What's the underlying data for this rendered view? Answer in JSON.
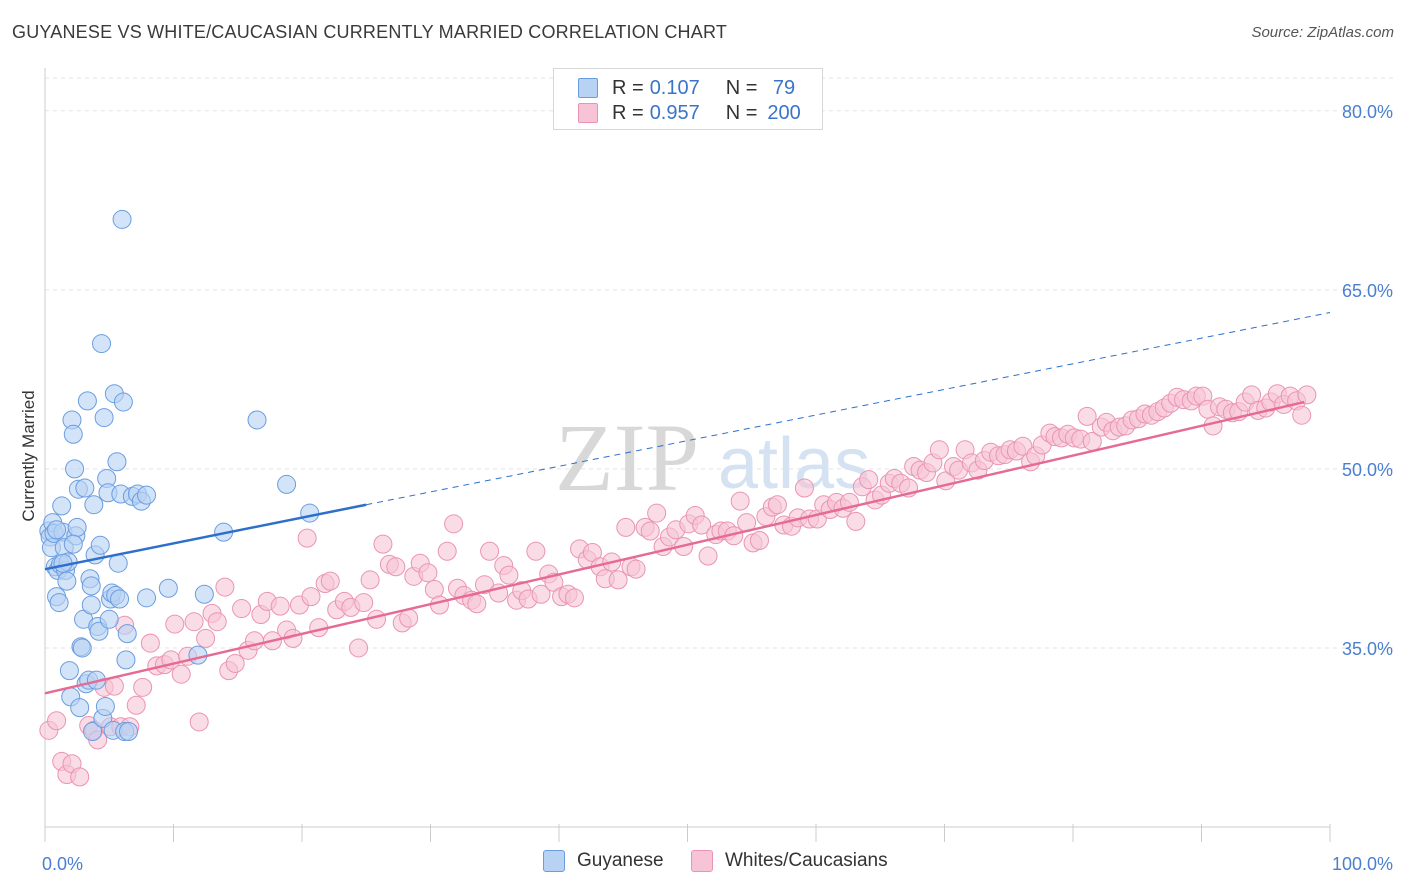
{
  "title": "GUYANESE VS WHITE/CAUCASIAN CURRENTLY MARRIED CORRELATION CHART",
  "source": "Source: ZipAtlas.com",
  "watermark": {
    "zip": "ZIP",
    "atlas": "atlas"
  },
  "colors": {
    "blue_fill": "#b7d2f3",
    "blue_stroke": "#6a9de0",
    "blue_line": "#2e6fcb",
    "pink_fill": "#f6c4d6",
    "pink_stroke": "#ea94b4",
    "pink_line": "#e66b94",
    "grid": "#e4e4e4",
    "axis_text": "#4a7fd0"
  },
  "legend": {
    "rows": [
      {
        "r_label": "R = ",
        "r_value": "0.107",
        "n_label": "N = ",
        "n_value": " 79"
      },
      {
        "r_label": "R = ",
        "r_value": "0.957",
        "n_label": "N = ",
        "n_value": "200"
      }
    ]
  },
  "bottom_legend": [
    "Guyanese",
    "Whites/Caucasians"
  ],
  "chart_data": {
    "type": "scatter",
    "title": "GUYANESE VS WHITE/CAUCASIAN CURRENTLY MARRIED CORRELATION CHART",
    "xlabel": "",
    "ylabel": "Currently Married",
    "xlim": [
      0,
      100
    ],
    "ylim": [
      20,
      83
    ],
    "x_tick_labels": [
      {
        "x": 0,
        "label": "0.0%"
      },
      {
        "x": 100,
        "label": "100.0%"
      }
    ],
    "y_tick_labels": [
      {
        "y": 35,
        "label": "35.0%"
      },
      {
        "y": 50,
        "label": "50.0%"
      },
      {
        "y": 65,
        "label": "65.0%"
      },
      {
        "y": 80,
        "label": "80.0%"
      }
    ],
    "grid": true,
    "series": [
      {
        "name": "Guyanese",
        "r": 0.107,
        "n": 79,
        "trend": {
          "x0": 0,
          "y0": 41.6,
          "x1": 25,
          "y1": 47.0,
          "dashed_to_x": 100,
          "dashed_to_y": 63.1
        },
        "points": [
          [
            0.3,
            44.8
          ],
          [
            0.4,
            44.3
          ],
          [
            0.5,
            43.4
          ],
          [
            0.6,
            45.5
          ],
          [
            0.7,
            44.6
          ],
          [
            0.8,
            41.8
          ],
          [
            0.9,
            39.3
          ],
          [
            1.0,
            41.5
          ],
          [
            1.1,
            38.8
          ],
          [
            1.2,
            42.0
          ],
          [
            1.3,
            46.9
          ],
          [
            1.4,
            44.7
          ],
          [
            1.5,
            43.4
          ],
          [
            1.6,
            41.5
          ],
          [
            1.7,
            40.6
          ],
          [
            1.8,
            42.2
          ],
          [
            1.9,
            33.1
          ],
          [
            2.0,
            30.9
          ],
          [
            2.1,
            54.1
          ],
          [
            2.2,
            52.9
          ],
          [
            2.3,
            50.0
          ],
          [
            2.4,
            44.4
          ],
          [
            2.5,
            45.1
          ],
          [
            2.6,
            48.3
          ],
          [
            2.7,
            30.0
          ],
          [
            2.8,
            35.1
          ],
          [
            2.9,
            35.0
          ],
          [
            3.0,
            37.4
          ],
          [
            3.1,
            48.4
          ],
          [
            3.2,
            32.0
          ],
          [
            3.3,
            55.7
          ],
          [
            3.4,
            32.3
          ],
          [
            3.5,
            40.8
          ],
          [
            3.6,
            40.2
          ],
          [
            3.7,
            28.0
          ],
          [
            3.8,
            47.0
          ],
          [
            3.9,
            42.8
          ],
          [
            4.0,
            32.3
          ],
          [
            4.1,
            36.8
          ],
          [
            4.2,
            36.4
          ],
          [
            4.3,
            43.6
          ],
          [
            4.4,
            60.5
          ],
          [
            4.5,
            29.1
          ],
          [
            4.6,
            54.3
          ],
          [
            4.7,
            30.1
          ],
          [
            4.8,
            49.2
          ],
          [
            4.9,
            48.0
          ],
          [
            5.0,
            37.4
          ],
          [
            5.1,
            39.1
          ],
          [
            5.2,
            39.6
          ],
          [
            5.3,
            28.1
          ],
          [
            5.4,
            56.3
          ],
          [
            5.5,
            39.4
          ],
          [
            5.6,
            50.6
          ],
          [
            5.7,
            42.1
          ],
          [
            5.8,
            39.1
          ],
          [
            5.9,
            47.9
          ],
          [
            6.0,
            70.9
          ],
          [
            6.1,
            55.6
          ],
          [
            6.2,
            28.0
          ],
          [
            6.3,
            34.0
          ],
          [
            6.4,
            36.2
          ],
          [
            6.5,
            28.0
          ],
          [
            6.8,
            47.7
          ],
          [
            7.2,
            47.9
          ],
          [
            7.5,
            47.3
          ],
          [
            7.9,
            47.8
          ],
          [
            7.9,
            39.2
          ],
          [
            9.6,
            40.0
          ],
          [
            11.9,
            34.4
          ],
          [
            12.4,
            39.5
          ],
          [
            13.9,
            44.7
          ],
          [
            16.5,
            54.1
          ],
          [
            18.8,
            48.7
          ],
          [
            20.6,
            46.3
          ],
          [
            2.2,
            43.7
          ],
          [
            1.4,
            42.1
          ],
          [
            0.9,
            44.9
          ],
          [
            3.6,
            38.6
          ]
        ]
      },
      {
        "name": "Whites/Caucasians",
        "r": 0.957,
        "n": 200,
        "trend": {
          "x0": 0,
          "y0": 31.2,
          "x1": 98,
          "y1": 55.6
        },
        "points": [
          [
            0.3,
            28.1
          ],
          [
            0.9,
            28.9
          ],
          [
            1.3,
            25.5
          ],
          [
            1.7,
            24.4
          ],
          [
            2.1,
            25.3
          ],
          [
            2.7,
            24.2
          ],
          [
            3.4,
            28.5
          ],
          [
            3.8,
            28.1
          ],
          [
            4.1,
            27.3
          ],
          [
            4.6,
            31.7
          ],
          [
            5.1,
            28.4
          ],
          [
            5.4,
            31.8
          ],
          [
            5.9,
            28.4
          ],
          [
            6.2,
            36.9
          ],
          [
            6.6,
            28.4
          ],
          [
            7.1,
            30.2
          ],
          [
            7.6,
            31.7
          ],
          [
            8.2,
            35.4
          ],
          [
            8.7,
            33.5
          ],
          [
            9.3,
            33.6
          ],
          [
            9.8,
            34.0
          ],
          [
            10.1,
            37.0
          ],
          [
            10.6,
            32.8
          ],
          [
            11.1,
            34.3
          ],
          [
            11.6,
            37.2
          ],
          [
            12.0,
            28.8
          ],
          [
            12.5,
            35.8
          ],
          [
            13.0,
            37.9
          ],
          [
            13.4,
            37.2
          ],
          [
            14.0,
            40.1
          ],
          [
            14.3,
            33.1
          ],
          [
            14.8,
            33.7
          ],
          [
            15.3,
            38.3
          ],
          [
            15.8,
            34.8
          ],
          [
            16.3,
            35.6
          ],
          [
            16.8,
            37.8
          ],
          [
            17.3,
            38.9
          ],
          [
            17.7,
            35.6
          ],
          [
            18.3,
            38.5
          ],
          [
            18.8,
            36.5
          ],
          [
            19.3,
            35.8
          ],
          [
            19.8,
            38.6
          ],
          [
            20.4,
            44.2
          ],
          [
            20.7,
            39.3
          ],
          [
            21.3,
            36.7
          ],
          [
            21.8,
            40.4
          ],
          [
            22.2,
            40.6
          ],
          [
            22.7,
            38.2
          ],
          [
            23.3,
            38.9
          ],
          [
            23.8,
            38.4
          ],
          [
            24.4,
            35.0
          ],
          [
            24.8,
            38.8
          ],
          [
            25.3,
            40.7
          ],
          [
            25.8,
            37.4
          ],
          [
            26.3,
            43.7
          ],
          [
            26.8,
            42.0
          ],
          [
            27.3,
            41.8
          ],
          [
            27.8,
            37.1
          ],
          [
            28.3,
            37.5
          ],
          [
            28.7,
            41.0
          ],
          [
            29.2,
            42.1
          ],
          [
            29.8,
            41.3
          ],
          [
            30.3,
            39.9
          ],
          [
            30.7,
            38.6
          ],
          [
            31.3,
            43.1
          ],
          [
            31.8,
            45.4
          ],
          [
            32.1,
            40.0
          ],
          [
            32.6,
            39.4
          ],
          [
            33.2,
            39.0
          ],
          [
            33.6,
            38.7
          ],
          [
            34.2,
            40.3
          ],
          [
            34.6,
            43.1
          ],
          [
            35.3,
            39.6
          ],
          [
            35.7,
            41.9
          ],
          [
            36.1,
            41.1
          ],
          [
            36.7,
            39.0
          ],
          [
            37.1,
            39.8
          ],
          [
            37.6,
            39.1
          ],
          [
            38.2,
            43.1
          ],
          [
            38.6,
            39.5
          ],
          [
            39.2,
            41.2
          ],
          [
            39.6,
            40.5
          ],
          [
            40.2,
            39.3
          ],
          [
            40.7,
            39.5
          ],
          [
            41.2,
            39.2
          ],
          [
            41.6,
            43.3
          ],
          [
            42.2,
            42.4
          ],
          [
            42.6,
            43.0
          ],
          [
            43.2,
            41.8
          ],
          [
            43.6,
            40.8
          ],
          [
            44.1,
            42.2
          ],
          [
            44.6,
            40.7
          ],
          [
            45.2,
            45.1
          ],
          [
            45.6,
            41.8
          ],
          [
            46.0,
            41.6
          ],
          [
            46.7,
            45.1
          ],
          [
            47.1,
            44.8
          ],
          [
            47.6,
            46.3
          ],
          [
            48.1,
            43.5
          ],
          [
            48.6,
            44.3
          ],
          [
            49.1,
            44.9
          ],
          [
            49.7,
            43.5
          ],
          [
            50.1,
            45.4
          ],
          [
            50.6,
            46.1
          ],
          [
            51.1,
            45.3
          ],
          [
            51.6,
            42.7
          ],
          [
            52.2,
            44.5
          ],
          [
            52.6,
            44.8
          ],
          [
            53.1,
            44.8
          ],
          [
            53.6,
            44.4
          ],
          [
            54.1,
            47.3
          ],
          [
            54.6,
            45.5
          ],
          [
            55.1,
            43.8
          ],
          [
            55.6,
            44.0
          ],
          [
            56.1,
            46.0
          ],
          [
            56.6,
            46.8
          ],
          [
            57.0,
            47.0
          ],
          [
            57.5,
            45.3
          ],
          [
            58.1,
            45.2
          ],
          [
            58.6,
            45.9
          ],
          [
            59.1,
            48.4
          ],
          [
            59.5,
            45.8
          ],
          [
            60.1,
            45.8
          ],
          [
            60.6,
            47.0
          ],
          [
            61.1,
            46.6
          ],
          [
            61.6,
            47.2
          ],
          [
            62.1,
            46.7
          ],
          [
            62.6,
            47.2
          ],
          [
            63.1,
            45.6
          ],
          [
            63.6,
            48.5
          ],
          [
            64.1,
            49.1
          ],
          [
            64.6,
            47.4
          ],
          [
            65.1,
            47.8
          ],
          [
            65.7,
            48.8
          ],
          [
            66.1,
            49.2
          ],
          [
            66.6,
            48.8
          ],
          [
            67.2,
            48.4
          ],
          [
            67.6,
            50.2
          ],
          [
            68.1,
            49.9
          ],
          [
            68.6,
            49.7
          ],
          [
            69.1,
            50.5
          ],
          [
            69.6,
            51.6
          ],
          [
            70.1,
            49.0
          ],
          [
            70.7,
            50.2
          ],
          [
            71.1,
            49.9
          ],
          [
            71.6,
            51.6
          ],
          [
            72.1,
            50.5
          ],
          [
            72.6,
            49.9
          ],
          [
            73.1,
            50.7
          ],
          [
            73.6,
            51.4
          ],
          [
            74.2,
            51.1
          ],
          [
            74.7,
            51.2
          ],
          [
            75.1,
            51.6
          ],
          [
            75.6,
            51.5
          ],
          [
            76.1,
            51.9
          ],
          [
            76.7,
            50.6
          ],
          [
            77.1,
            51.1
          ],
          [
            77.6,
            52.0
          ],
          [
            78.2,
            53.0
          ],
          [
            78.6,
            52.7
          ],
          [
            79.1,
            52.6
          ],
          [
            79.6,
            52.9
          ],
          [
            80.1,
            52.6
          ],
          [
            80.6,
            52.5
          ],
          [
            81.1,
            54.4
          ],
          [
            81.5,
            52.3
          ],
          [
            82.2,
            53.5
          ],
          [
            82.6,
            53.9
          ],
          [
            83.1,
            53.2
          ],
          [
            83.6,
            53.5
          ],
          [
            84.1,
            53.6
          ],
          [
            84.6,
            54.1
          ],
          [
            85.1,
            54.2
          ],
          [
            85.6,
            54.6
          ],
          [
            86.1,
            54.5
          ],
          [
            86.6,
            54.8
          ],
          [
            87.1,
            55.1
          ],
          [
            87.6,
            55.5
          ],
          [
            88.1,
            56.0
          ],
          [
            88.6,
            55.8
          ],
          [
            89.2,
            55.7
          ],
          [
            89.6,
            56.1
          ],
          [
            90.1,
            56.1
          ],
          [
            90.5,
            55.0
          ],
          [
            90.9,
            53.6
          ],
          [
            91.4,
            55.2
          ],
          [
            91.9,
            55.0
          ],
          [
            92.4,
            54.7
          ],
          [
            92.9,
            54.8
          ],
          [
            93.4,
            55.6
          ],
          [
            93.9,
            56.2
          ],
          [
            94.4,
            54.9
          ],
          [
            95.0,
            55.1
          ],
          [
            95.4,
            55.6
          ],
          [
            95.9,
            56.3
          ],
          [
            96.4,
            55.4
          ],
          [
            96.9,
            56.1
          ],
          [
            97.4,
            55.7
          ],
          [
            97.8,
            54.5
          ],
          [
            98.2,
            56.2
          ]
        ]
      }
    ]
  }
}
